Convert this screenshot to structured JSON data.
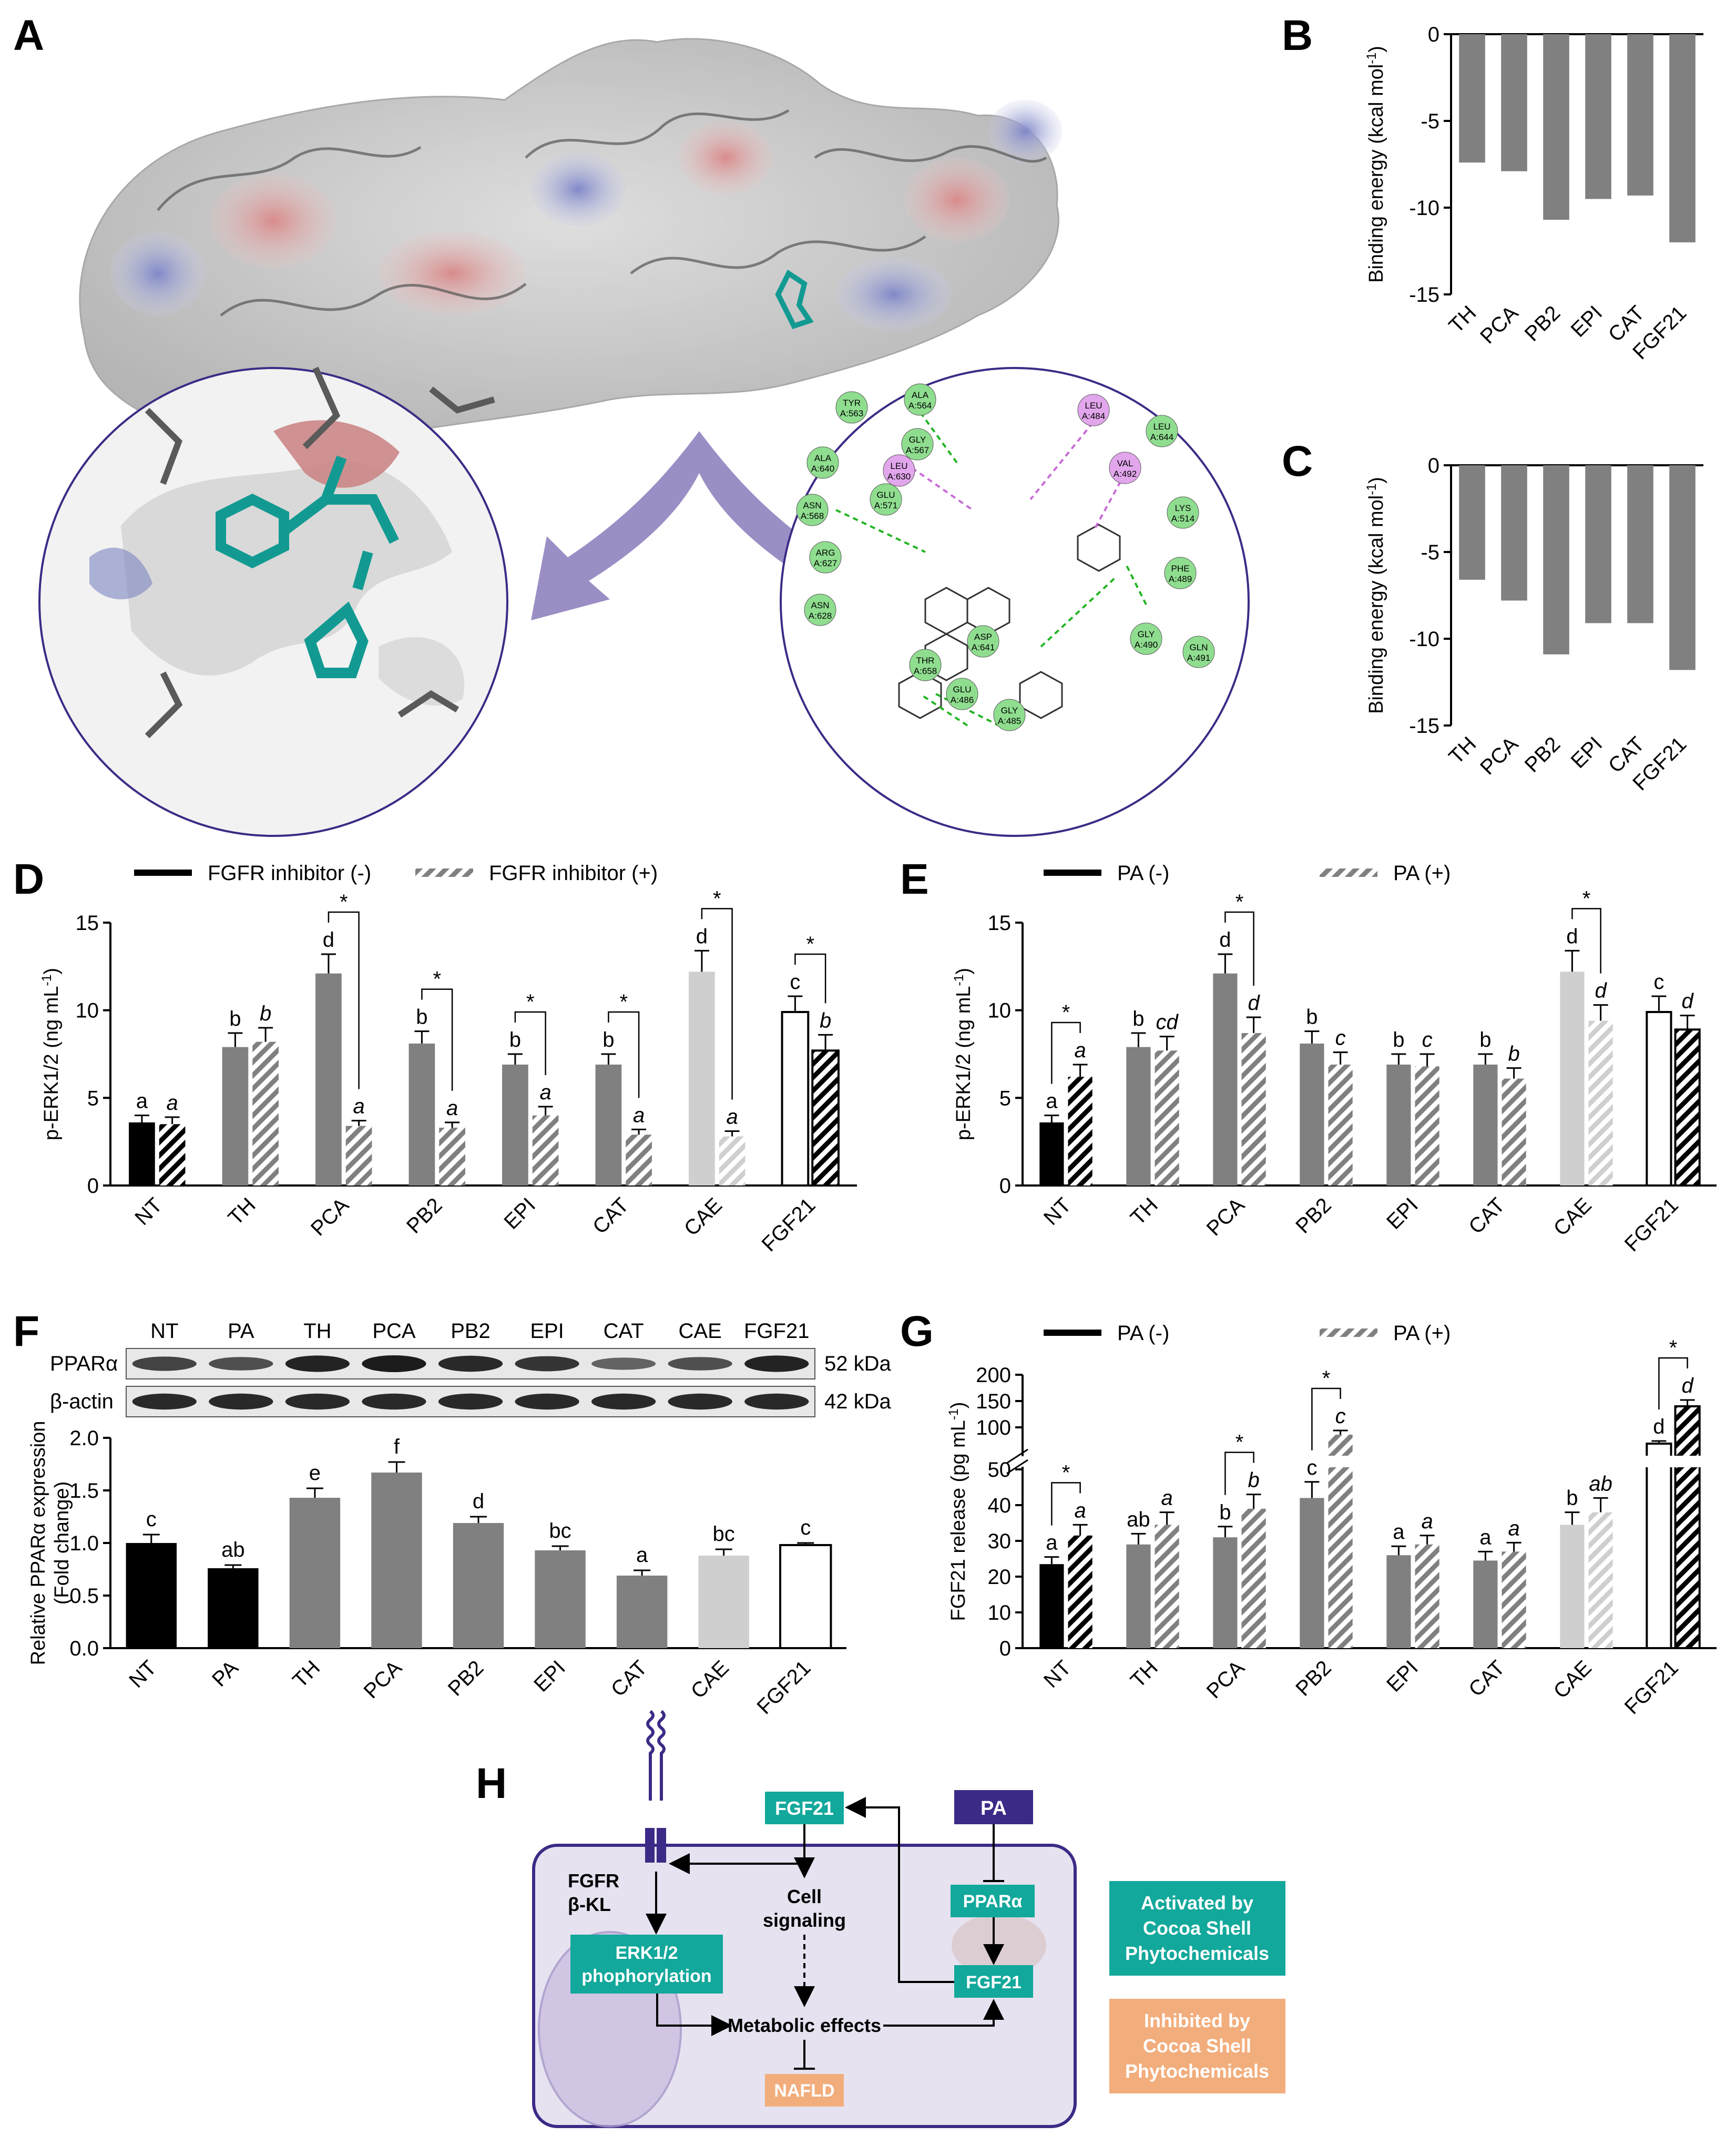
{
  "panel_letters": {
    "A": "A",
    "B": "B",
    "C": "C",
    "D": "D",
    "E": "E",
    "F": "F",
    "G": "G",
    "H": "H"
  },
  "colors": {
    "black": "#000000",
    "gray": "#808080",
    "light": "#cfcfcf",
    "purple": "#3d2a86",
    "teal": "#12a89b",
    "orange": "#f2ad7c",
    "cell": "#e6e2f0"
  },
  "panelA": {
    "residues": [
      {
        "name": "TYR",
        "id": "A:563"
      },
      {
        "name": "ALA",
        "id": "A:564"
      },
      {
        "name": "GLY",
        "id": "A:567"
      },
      {
        "name": "ALA",
        "id": "A:640"
      },
      {
        "name": "LEU",
        "id": "A:630"
      },
      {
        "name": "GLU",
        "id": "A:571"
      },
      {
        "name": "ASN",
        "id": "A:568"
      },
      {
        "name": "ARG",
        "id": "A:627"
      },
      {
        "name": "ASN",
        "id": "A:628"
      },
      {
        "name": "LEU",
        "id": "A:484"
      },
      {
        "name": "LEU",
        "id": "A:644"
      },
      {
        "name": "VAL",
        "id": "A:492"
      },
      {
        "name": "LYS",
        "id": "A:514"
      },
      {
        "name": "PHE",
        "id": "A:489"
      },
      {
        "name": "GLY",
        "id": "A:490"
      },
      {
        "name": "GLN",
        "id": "A:491"
      },
      {
        "name": "ASP",
        "id": "A:641"
      },
      {
        "name": "THR",
        "id": "A:658"
      },
      {
        "name": "GLU",
        "id": "A:486"
      },
      {
        "name": "GLY",
        "id": "A:485"
      }
    ]
  },
  "chart_data": [
    {
      "panel": "B",
      "type": "bar",
      "categories": [
        "TH",
        "PCA",
        "PB2",
        "EPI",
        "CAT",
        "FGF21"
      ],
      "values": [
        -7.4,
        -7.9,
        -10.7,
        -9.5,
        -9.3,
        -12.0
      ],
      "ylabel": "Binding energy (kcal mol-1)",
      "ylim": [
        -15,
        0
      ],
      "yticks": [
        0,
        -5,
        -10,
        -15
      ]
    },
    {
      "panel": "C",
      "type": "bar",
      "categories": [
        "TH",
        "PCA",
        "PB2",
        "EPI",
        "CAT",
        "FGF21"
      ],
      "values": [
        -6.6,
        -7.8,
        -10.9,
        -9.1,
        -9.1,
        -11.8
      ],
      "ylabel": "Binding energy (kcal mol-1)",
      "ylim": [
        -15,
        0
      ],
      "yticks": [
        0,
        -5,
        -10,
        -15
      ]
    },
    {
      "panel": "D",
      "type": "bar",
      "categories": [
        "NT",
        "TH",
        "PCA",
        "PB2",
        "EPI",
        "CAT",
        "CAE",
        "FGF21"
      ],
      "ylabel": "p-ERK1/2 (ng mL-1)",
      "ylim": [
        0,
        15
      ],
      "yticks": [
        0,
        5,
        10,
        15
      ],
      "series": [
        {
          "name": "FGFR inhibitor (-)",
          "values": [
            3.6,
            7.9,
            12.1,
            8.1,
            6.9,
            6.9,
            12.2,
            9.9
          ],
          "errors": [
            0.4,
            0.8,
            1.1,
            0.7,
            0.6,
            0.6,
            1.2,
            0.9
          ],
          "letters": [
            "a",
            "b",
            "d",
            "b",
            "b",
            "b",
            "d",
            "c"
          ]
        },
        {
          "name": "FGFR inhibitor (+)",
          "values": [
            3.5,
            8.2,
            3.4,
            3.3,
            4.0,
            2.9,
            2.8,
            7.7
          ],
          "errors": [
            0.4,
            0.8,
            0.3,
            0.3,
            0.5,
            0.3,
            0.3,
            0.9
          ],
          "letters": [
            "a",
            "b",
            "a",
            "a",
            "a",
            "a",
            "a",
            "b"
          ]
        }
      ],
      "significance": [
        "PCA",
        "PB2",
        "EPI",
        "CAT",
        "CAE",
        "FGF21"
      ],
      "sig_mark": "*"
    },
    {
      "panel": "E",
      "type": "bar",
      "categories": [
        "NT",
        "TH",
        "PCA",
        "PB2",
        "EPI",
        "CAT",
        "CAE",
        "FGF21"
      ],
      "ylabel": "p-ERK1/2 (ng mL-1)",
      "ylim": [
        0,
        15
      ],
      "yticks": [
        0,
        5,
        10,
        15
      ],
      "series": [
        {
          "name": "PA (-)",
          "values": [
            3.6,
            7.9,
            12.1,
            8.1,
            6.9,
            6.9,
            12.2,
            9.9
          ],
          "errors": [
            0.4,
            0.8,
            1.1,
            0.7,
            0.6,
            0.6,
            1.2,
            0.9
          ],
          "letters": [
            "a",
            "b",
            "d",
            "b",
            "b",
            "b",
            "d",
            "c"
          ]
        },
        {
          "name": "PA (+)",
          "values": [
            6.2,
            7.7,
            8.7,
            6.9,
            6.8,
            6.1,
            9.4,
            8.9
          ],
          "errors": [
            0.7,
            0.8,
            0.9,
            0.7,
            0.7,
            0.6,
            0.9,
            0.8
          ],
          "letters": [
            "a",
            "cd",
            "d",
            "c",
            "c",
            "b",
            "d",
            "d"
          ]
        }
      ],
      "significance": [
        "NT",
        "PCA",
        "CAE"
      ],
      "sig_mark": "*"
    },
    {
      "panel": "F",
      "type": "bar",
      "categories": [
        "NT",
        "PA",
        "TH",
        "PCA",
        "PB2",
        "EPI",
        "CAT",
        "CAE",
        "FGF21"
      ],
      "values": [
        1.0,
        0.76,
        1.43,
        1.67,
        1.19,
        0.93,
        0.69,
        0.88,
        0.98
      ],
      "errors": [
        0.08,
        0.03,
        0.09,
        0.1,
        0.06,
        0.04,
        0.05,
        0.06,
        0.02
      ],
      "letters": [
        "c",
        "ab",
        "e",
        "f",
        "d",
        "bc",
        "a",
        "bc",
        "c"
      ],
      "ylabel": "Relative PPARα expression (Fold change)",
      "ylim": [
        0,
        2.0
      ],
      "yticks": [
        0.0,
        0.5,
        1.0,
        1.5,
        2.0
      ],
      "blot": {
        "lanes": [
          "NT",
          "PA",
          "TH",
          "PCA",
          "PB2",
          "EPI",
          "CAT",
          "CAE",
          "FGF21"
        ],
        "rows": [
          {
            "label": "PPARα",
            "size": "52 kDa",
            "intensity": [
              0.7,
              0.6,
              0.95,
              1.0,
              0.9,
              0.8,
              0.45,
              0.6,
              0.95
            ]
          },
          {
            "label": "β-actin",
            "size": "42 kDa",
            "intensity": [
              0.9,
              0.9,
              0.9,
              0.9,
              0.9,
              0.9,
              0.9,
              0.9,
              0.9
            ]
          }
        ]
      }
    },
    {
      "panel": "G",
      "type": "bar",
      "categories": [
        "NT",
        "TH",
        "PCA",
        "PB2",
        "EPI",
        "CAT",
        "CAE",
        "FGF21"
      ],
      "ylabel": "FGF21 release (pg mL-1)",
      "yticks_lower": [
        0,
        10,
        20,
        30,
        40,
        50
      ],
      "yticks_upper": [
        100,
        150,
        200
      ],
      "axis_break": [
        50,
        50
      ],
      "series": [
        {
          "name": "PA (-)",
          "values": [
            23.5,
            29,
            31,
            42,
            26,
            24.5,
            34.5,
            69
          ],
          "errors": [
            2,
            3,
            3,
            4.5,
            2.5,
            2.5,
            3.5,
            5
          ],
          "letters": [
            "a",
            "ab",
            "b",
            "c",
            "a",
            "a",
            "b",
            "d"
          ]
        },
        {
          "name": "PA (+)",
          "values": [
            31.5,
            34.5,
            39,
            86,
            29,
            27,
            38,
            140
          ],
          "errors": [
            3,
            3.5,
            4,
            8,
            2.5,
            2.5,
            4,
            12
          ],
          "letters": [
            "a",
            "a",
            "b",
            "c",
            "a",
            "a",
            "ab",
            "d"
          ]
        }
      ],
      "significance": [
        "NT",
        "PCA",
        "PB2",
        "FGF21"
      ],
      "sig_mark": "*"
    }
  ],
  "panelH": {
    "fgf21_top": "FGF21",
    "pa": "PA",
    "receptor_1": "FGFR",
    "receptor_2": "β-KL",
    "erk_1": "ERK1/2",
    "erk_2": "phophorylation",
    "cell_1": "Cell",
    "cell_2": "signaling",
    "ppara": "PPARα",
    "fgf21_inner": "FGF21",
    "metabolic": "Metabolic effects",
    "nafld": "NAFLD",
    "legend_activated": [
      "Activated by",
      "Cocoa Shell",
      "Phytochemicals"
    ],
    "legend_inhibited": [
      "Inhibited by",
      "Cocoa Shell",
      "Phytochemicals"
    ]
  }
}
